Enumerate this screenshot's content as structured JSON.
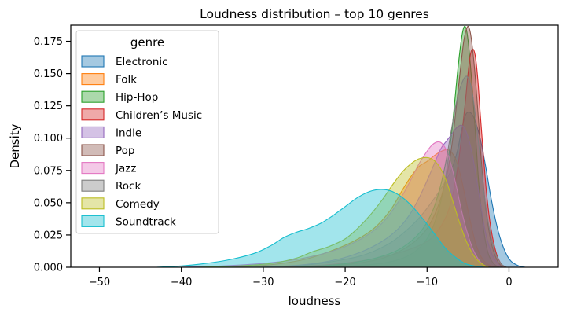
{
  "chart_data": {
    "type": "area",
    "title": "Loudness distribution – top 10 genres",
    "xlabel": "loudness",
    "ylabel": "Density",
    "xlim": [
      -53.5,
      6.0
    ],
    "ylim": [
      0,
      0.1875
    ],
    "x_ticks": [
      -50,
      -40,
      -30,
      -20,
      -10,
      0
    ],
    "x_tick_labels": [
      "−50",
      "−40",
      "−30",
      "−20",
      "−10",
      "0"
    ],
    "y_ticks": [
      0,
      0.025,
      0.05,
      0.075,
      0.1,
      0.125,
      0.15,
      0.175
    ],
    "y_tick_labels": [
      "0.000",
      "0.025",
      "0.050",
      "0.075",
      "0.100",
      "0.125",
      "0.150",
      "0.175"
    ],
    "grid": false,
    "legend": {
      "title": "genre",
      "placement": "top-left"
    },
    "series": [
      {
        "name": "Electronic",
        "color": "#1f77b4",
        "points": [
          [
            -31,
            0
          ],
          [
            -26,
            0.001
          ],
          [
            -22,
            0.004
          ],
          [
            -18,
            0.009
          ],
          [
            -15,
            0.017
          ],
          [
            -13,
            0.026
          ],
          [
            -11,
            0.038
          ],
          [
            -9.5,
            0.05
          ],
          [
            -8,
            0.064
          ],
          [
            -7,
            0.076
          ],
          [
            -6.3,
            0.09
          ],
          [
            -5.8,
            0.106
          ],
          [
            -5.3,
            0.118
          ],
          [
            -4.8,
            0.12
          ],
          [
            -4.3,
            0.116
          ],
          [
            -3.6,
            0.102
          ],
          [
            -2.9,
            0.08
          ],
          [
            -2.2,
            0.054
          ],
          [
            -1.4,
            0.03
          ],
          [
            -0.6,
            0.014
          ],
          [
            0.2,
            0.005
          ],
          [
            1.2,
            0.001
          ],
          [
            2.0,
            0
          ]
        ]
      },
      {
        "name": "Folk",
        "color": "#ff7f0e",
        "points": [
          [
            -34,
            0
          ],
          [
            -29,
            0.002
          ],
          [
            -25,
            0.006
          ],
          [
            -22,
            0.012
          ],
          [
            -19,
            0.02
          ],
          [
            -16.5,
            0.03
          ],
          [
            -14.5,
            0.044
          ],
          [
            -13,
            0.06
          ],
          [
            -12,
            0.07
          ],
          [
            -11,
            0.078
          ],
          [
            -10,
            0.082
          ],
          [
            -9,
            0.087
          ],
          [
            -8.2,
            0.09
          ],
          [
            -7.5,
            0.091
          ],
          [
            -7,
            0.089
          ],
          [
            -6.4,
            0.082
          ],
          [
            -5.8,
            0.068
          ],
          [
            -5.2,
            0.05
          ],
          [
            -4.6,
            0.032
          ],
          [
            -4,
            0.017
          ],
          [
            -3.3,
            0.007
          ],
          [
            -2.5,
            0.002
          ],
          [
            -1.6,
            0
          ]
        ]
      },
      {
        "name": "Hip-Hop",
        "color": "#2ca02c",
        "points": [
          [
            -22,
            0
          ],
          [
            -17,
            0.002
          ],
          [
            -14,
            0.005
          ],
          [
            -12,
            0.01
          ],
          [
            -10.5,
            0.018
          ],
          [
            -9.5,
            0.028
          ],
          [
            -8.7,
            0.042
          ],
          [
            -8,
            0.06
          ],
          [
            -7.5,
            0.08
          ],
          [
            -7,
            0.104
          ],
          [
            -6.6,
            0.13
          ],
          [
            -6.2,
            0.156
          ],
          [
            -5.8,
            0.177
          ],
          [
            -5.5,
            0.186
          ],
          [
            -5.2,
            0.184
          ],
          [
            -4.9,
            0.17
          ],
          [
            -4.5,
            0.14
          ],
          [
            -4.1,
            0.104
          ],
          [
            -3.7,
            0.066
          ],
          [
            -3.2,
            0.034
          ],
          [
            -2.6,
            0.012
          ],
          [
            -1.9,
            0.003
          ],
          [
            -1.2,
            0
          ]
        ]
      },
      {
        "name": "Children’s Music",
        "color": "#d62728",
        "points": [
          [
            -28,
            0
          ],
          [
            -22,
            0.002
          ],
          [
            -17,
            0.006
          ],
          [
            -13,
            0.012
          ],
          [
            -10,
            0.02
          ],
          [
            -8.5,
            0.03
          ],
          [
            -7.5,
            0.042
          ],
          [
            -6.8,
            0.058
          ],
          [
            -6.2,
            0.08
          ],
          [
            -5.7,
            0.106
          ],
          [
            -5.3,
            0.13
          ],
          [
            -5.0,
            0.15
          ],
          [
            -4.7,
            0.165
          ],
          [
            -4.4,
            0.169
          ],
          [
            -4.1,
            0.163
          ],
          [
            -3.8,
            0.145
          ],
          [
            -3.5,
            0.118
          ],
          [
            -3.1,
            0.085
          ],
          [
            -2.7,
            0.055
          ],
          [
            -2.2,
            0.03
          ],
          [
            -1.6,
            0.012
          ],
          [
            -1.0,
            0.003
          ],
          [
            -0.4,
            0
          ]
        ]
      },
      {
        "name": "Indie",
        "color": "#9467bd",
        "points": [
          [
            -30,
            0
          ],
          [
            -25,
            0.002
          ],
          [
            -21,
            0.006
          ],
          [
            -18,
            0.012
          ],
          [
            -15.5,
            0.02
          ],
          [
            -13.5,
            0.03
          ],
          [
            -12,
            0.042
          ],
          [
            -10.8,
            0.056
          ],
          [
            -9.8,
            0.07
          ],
          [
            -9,
            0.082
          ],
          [
            -8.3,
            0.092
          ],
          [
            -7.6,
            0.098
          ],
          [
            -7,
            0.103
          ],
          [
            -6.4,
            0.108
          ],
          [
            -5.8,
            0.11
          ],
          [
            -5.3,
            0.106
          ],
          [
            -4.7,
            0.094
          ],
          [
            -4.1,
            0.074
          ],
          [
            -3.5,
            0.05
          ],
          [
            -2.9,
            0.028
          ],
          [
            -2.2,
            0.012
          ],
          [
            -1.5,
            0.004
          ],
          [
            -0.8,
            0
          ]
        ]
      },
      {
        "name": "Pop",
        "color": "#8c564b",
        "points": [
          [
            -24,
            0
          ],
          [
            -20,
            0.002
          ],
          [
            -16,
            0.006
          ],
          [
            -13.5,
            0.012
          ],
          [
            -11.5,
            0.02
          ],
          [
            -10,
            0.03
          ],
          [
            -9,
            0.042
          ],
          [
            -8.2,
            0.056
          ],
          [
            -7.5,
            0.074
          ],
          [
            -6.9,
            0.098
          ],
          [
            -6.4,
            0.126
          ],
          [
            -5.9,
            0.155
          ],
          [
            -5.5,
            0.176
          ],
          [
            -5.1,
            0.186
          ],
          [
            -4.8,
            0.184
          ],
          [
            -4.5,
            0.172
          ],
          [
            -4.1,
            0.146
          ],
          [
            -3.7,
            0.112
          ],
          [
            -3.3,
            0.076
          ],
          [
            -2.8,
            0.044
          ],
          [
            -2.2,
            0.02
          ],
          [
            -1.5,
            0.006
          ],
          [
            -0.8,
            0
          ]
        ]
      },
      {
        "name": "Jazz",
        "color": "#e377c2",
        "points": [
          [
            -40,
            0
          ],
          [
            -35,
            0.001
          ],
          [
            -30,
            0.003
          ],
          [
            -26,
            0.006
          ],
          [
            -23,
            0.01
          ],
          [
            -20,
            0.016
          ],
          [
            -17.5,
            0.024
          ],
          [
            -15.5,
            0.034
          ],
          [
            -14,
            0.046
          ],
          [
            -12.8,
            0.058
          ],
          [
            -11.8,
            0.07
          ],
          [
            -11,
            0.08
          ],
          [
            -10.2,
            0.088
          ],
          [
            -9.5,
            0.094
          ],
          [
            -8.8,
            0.097
          ],
          [
            -8.2,
            0.096
          ],
          [
            -7.6,
            0.09
          ],
          [
            -7,
            0.078
          ],
          [
            -6.4,
            0.062
          ],
          [
            -5.8,
            0.044
          ],
          [
            -5.1,
            0.027
          ],
          [
            -4.4,
            0.014
          ],
          [
            -3.6,
            0.005
          ],
          [
            -2.8,
            0
          ]
        ]
      },
      {
        "name": "Rock",
        "color": "#7f7f7f",
        "points": [
          [
            -26,
            0
          ],
          [
            -21,
            0.002
          ],
          [
            -17,
            0.006
          ],
          [
            -14,
            0.012
          ],
          [
            -12,
            0.02
          ],
          [
            -10.5,
            0.03
          ],
          [
            -9.3,
            0.044
          ],
          [
            -8.4,
            0.062
          ],
          [
            -7.7,
            0.082
          ],
          [
            -7.1,
            0.104
          ],
          [
            -6.6,
            0.122
          ],
          [
            -6.1,
            0.136
          ],
          [
            -5.6,
            0.145
          ],
          [
            -5.2,
            0.148
          ],
          [
            -4.8,
            0.144
          ],
          [
            -4.4,
            0.132
          ],
          [
            -4.0,
            0.112
          ],
          [
            -3.5,
            0.084
          ],
          [
            -3.0,
            0.055
          ],
          [
            -2.4,
            0.03
          ],
          [
            -1.7,
            0.012
          ],
          [
            -1.0,
            0.003
          ],
          [
            -0.3,
            0
          ]
        ]
      },
      {
        "name": "Comedy",
        "color": "#bcbd22",
        "points": [
          [
            -38,
            0
          ],
          [
            -33,
            0.001
          ],
          [
            -29,
            0.003
          ],
          [
            -26,
            0.007
          ],
          [
            -24,
            0.012
          ],
          [
            -22,
            0.016
          ],
          [
            -20,
            0.022
          ],
          [
            -18.5,
            0.03
          ],
          [
            -17,
            0.04
          ],
          [
            -15.5,
            0.052
          ],
          [
            -14.2,
            0.064
          ],
          [
            -13,
            0.074
          ],
          [
            -12,
            0.08
          ],
          [
            -11,
            0.084
          ],
          [
            -10,
            0.085
          ],
          [
            -9.2,
            0.083
          ],
          [
            -8.4,
            0.077
          ],
          [
            -7.6,
            0.066
          ],
          [
            -6.8,
            0.05
          ],
          [
            -6,
            0.034
          ],
          [
            -5.2,
            0.02
          ],
          [
            -4.3,
            0.009
          ],
          [
            -3.4,
            0.003
          ],
          [
            -2.5,
            0
          ]
        ]
      },
      {
        "name": "Soundtrack",
        "color": "#17becf",
        "points": [
          [
            -43,
            0
          ],
          [
            -40,
            0.001
          ],
          [
            -37,
            0.003
          ],
          [
            -34,
            0.006
          ],
          [
            -31,
            0.011
          ],
          [
            -29,
            0.017
          ],
          [
            -27.5,
            0.023
          ],
          [
            -26,
            0.027
          ],
          [
            -24.5,
            0.03
          ],
          [
            -23,
            0.034
          ],
          [
            -21.5,
            0.04
          ],
          [
            -20,
            0.047
          ],
          [
            -18.5,
            0.054
          ],
          [
            -17.3,
            0.058
          ],
          [
            -16.2,
            0.06
          ],
          [
            -15,
            0.06
          ],
          [
            -14,
            0.058
          ],
          [
            -12.8,
            0.053
          ],
          [
            -11.5,
            0.045
          ],
          [
            -10.2,
            0.035
          ],
          [
            -9,
            0.025
          ],
          [
            -7.8,
            0.015
          ],
          [
            -6.6,
            0.008
          ],
          [
            -5.4,
            0.003
          ],
          [
            -4.2,
            0.001
          ],
          [
            -3.0,
            0
          ]
        ]
      }
    ]
  }
}
